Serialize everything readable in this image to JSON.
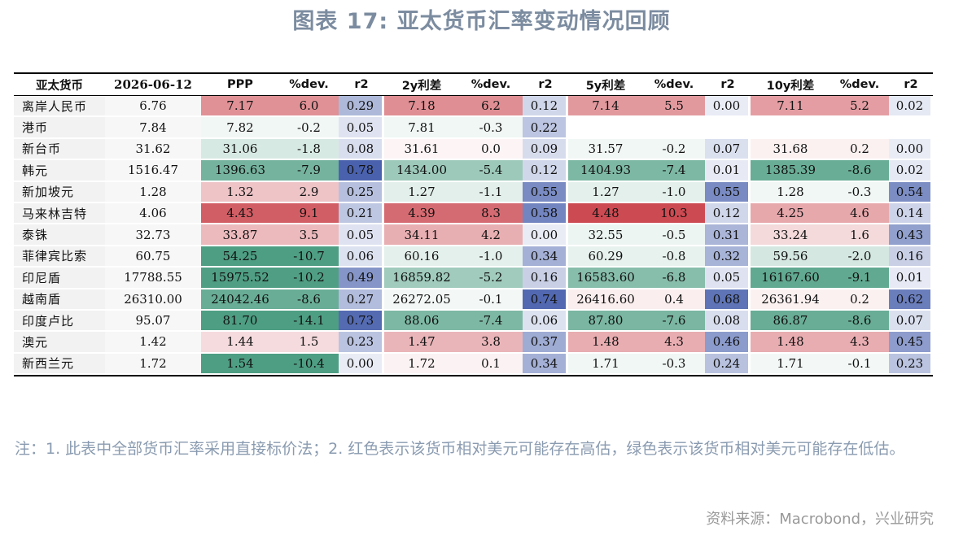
{
  "title": "图表 17: 亚太货币汇率变动情况回顾",
  "table": {
    "headers": [
      "亚太货币",
      "2026-06-12",
      "PPP",
      "%dev.",
      "r2",
      "2y利差",
      "%dev.",
      "r2",
      "5y利差",
      "%dev.",
      "r2",
      "10y利差",
      "%dev.",
      "r2"
    ],
    "rows": [
      {
        "name": "离岸人民币",
        "spot": "6.76",
        "g": [
          [
            "7.17",
            "6.0",
            "0.29"
          ],
          [
            "7.18",
            "6.2",
            "0.12"
          ],
          [
            "7.14",
            "5.5",
            "0.00"
          ],
          [
            "7.11",
            "5.2",
            "0.02"
          ]
        ]
      },
      {
        "name": "港币",
        "spot": "7.84",
        "g": [
          [
            "7.82",
            "-0.2",
            "0.05"
          ],
          [
            "7.81",
            "-0.3",
            "0.22"
          ],
          [
            "",
            "",
            ""
          ],
          [
            "",
            "",
            ""
          ]
        ]
      },
      {
        "name": "新台币",
        "spot": "31.62",
        "g": [
          [
            "31.06",
            "-1.8",
            "0.08"
          ],
          [
            "31.61",
            "0.0",
            "0.09"
          ],
          [
            "31.57",
            "-0.2",
            "0.07"
          ],
          [
            "31.68",
            "0.2",
            "0.00"
          ]
        ]
      },
      {
        "name": "韩元",
        "spot": "1516.47",
        "g": [
          [
            "1396.63",
            "-7.9",
            "0.78"
          ],
          [
            "1434.00",
            "-5.4",
            "0.12"
          ],
          [
            "1404.93",
            "-7.4",
            "0.01"
          ],
          [
            "1385.39",
            "-8.6",
            "0.02"
          ]
        ]
      },
      {
        "name": "新加坡元",
        "spot": "1.28",
        "g": [
          [
            "1.32",
            "2.9",
            "0.25"
          ],
          [
            "1.27",
            "-1.1",
            "0.55"
          ],
          [
            "1.27",
            "-1.0",
            "0.55"
          ],
          [
            "1.28",
            "-0.3",
            "0.54"
          ]
        ]
      },
      {
        "name": "马来林吉特",
        "spot": "4.06",
        "g": [
          [
            "4.43",
            "9.1",
            "0.21"
          ],
          [
            "4.39",
            "8.3",
            "0.58"
          ],
          [
            "4.48",
            "10.3",
            "0.12"
          ],
          [
            "4.25",
            "4.6",
            "0.14"
          ]
        ]
      },
      {
        "name": "泰铢",
        "spot": "32.73",
        "g": [
          [
            "33.87",
            "3.5",
            "0.05"
          ],
          [
            "34.11",
            "4.2",
            "0.00"
          ],
          [
            "32.55",
            "-0.5",
            "0.31"
          ],
          [
            "33.24",
            "1.6",
            "0.43"
          ]
        ]
      },
      {
        "name": "菲律宾比索",
        "spot": "60.75",
        "g": [
          [
            "54.25",
            "-10.7",
            "0.06"
          ],
          [
            "60.16",
            "-1.0",
            "0.34"
          ],
          [
            "60.29",
            "-0.8",
            "0.32"
          ],
          [
            "59.56",
            "-2.0",
            "0.16"
          ]
        ]
      },
      {
        "name": "印尼盾",
        "spot": "17788.55",
        "g": [
          [
            "15975.52",
            "-10.2",
            "0.49"
          ],
          [
            "16859.82",
            "-5.2",
            "0.16"
          ],
          [
            "16583.60",
            "-6.8",
            "0.05"
          ],
          [
            "16167.60",
            "-9.1",
            "0.01"
          ]
        ]
      },
      {
        "name": "越南盾",
        "spot": "26310.00",
        "g": [
          [
            "24042.46",
            "-8.6",
            "0.27"
          ],
          [
            "26272.05",
            "-0.1",
            "0.74"
          ],
          [
            "26416.60",
            "0.4",
            "0.68"
          ],
          [
            "26361.94",
            "0.2",
            "0.62"
          ]
        ]
      },
      {
        "name": "印度卢比",
        "spot": "95.07",
        "g": [
          [
            "81.70",
            "-14.1",
            "0.73"
          ],
          [
            "88.06",
            "-7.4",
            "0.06"
          ],
          [
            "87.80",
            "-7.6",
            "0.08"
          ],
          [
            "86.87",
            "-8.6",
            "0.07"
          ]
        ]
      },
      {
        "name": "澳元",
        "spot": "1.42",
        "g": [
          [
            "1.44",
            "1.5",
            "0.23"
          ],
          [
            "1.47",
            "3.8",
            "0.37"
          ],
          [
            "1.48",
            "4.3",
            "0.46"
          ],
          [
            "1.48",
            "4.3",
            "0.45"
          ]
        ]
      },
      {
        "name": "新西兰元",
        "spot": "1.72",
        "g": [
          [
            "1.54",
            "-10.4",
            "0.00"
          ],
          [
            "1.72",
            "0.1",
            "0.34"
          ],
          [
            "1.71",
            "-0.3",
            "0.24"
          ],
          [
            "1.71",
            "-0.1",
            "0.23"
          ]
        ]
      }
    ]
  },
  "colors": {
    "red": "#cc4a52",
    "green": "#4e9e83",
    "blue": "#4a62ad",
    "name_bg": "#f2f2f2",
    "spot_bg": "#f7f7f7",
    "empty_bg": "#ffffff"
  },
  "notes": "注：1. 此表中全部货币汇率采用直接标价法；2. 红色表示该货币相对美元可能存在高估，绿色表示该货币相对美元可能存在低估。",
  "source": "资料来源：Macrobond，兴业研究"
}
